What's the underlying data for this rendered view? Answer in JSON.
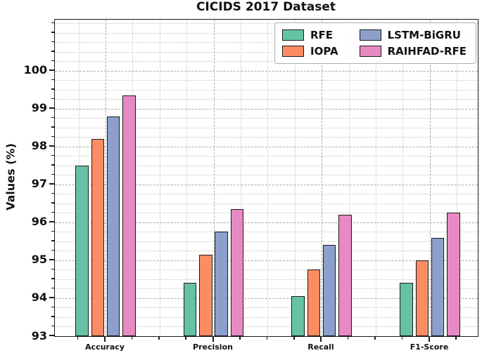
{
  "chart_data": {
    "type": "bar",
    "title": "CICIDS 2017 Dataset",
    "xlabel": "",
    "ylabel": "Values (%)",
    "categories": [
      "Accuracy",
      "Precision",
      "Recall",
      "F1-Score"
    ],
    "series": [
      {
        "name": "RFE",
        "color": "#66c2a5",
        "values": [
          97.5,
          94.4,
          94.05,
          94.4
        ]
      },
      {
        "name": "IOPA",
        "color": "#fc8d62",
        "values": [
          98.2,
          95.15,
          94.75,
          95.0
        ]
      },
      {
        "name": "LSTM-BiGRU",
        "color": "#8da0cb",
        "values": [
          98.8,
          95.75,
          95.4,
          95.6
        ]
      },
      {
        "name": "RAIHFAD-RFE",
        "color": "#e78ac3",
        "values": [
          99.35,
          96.35,
          96.2,
          96.25
        ]
      }
    ],
    "ylim": [
      93,
      101.35
    ],
    "yticks": [
      93,
      94,
      95,
      96,
      97,
      98,
      99,
      100
    ],
    "minor_tick_step": 0.25,
    "grid": {
      "major_style": "dashed",
      "minor_style": "dotted",
      "which": "both-axes"
    },
    "legend": {
      "position": "upper-right",
      "columns": 2
    },
    "bar_edge_color": "#1a1a1a"
  }
}
